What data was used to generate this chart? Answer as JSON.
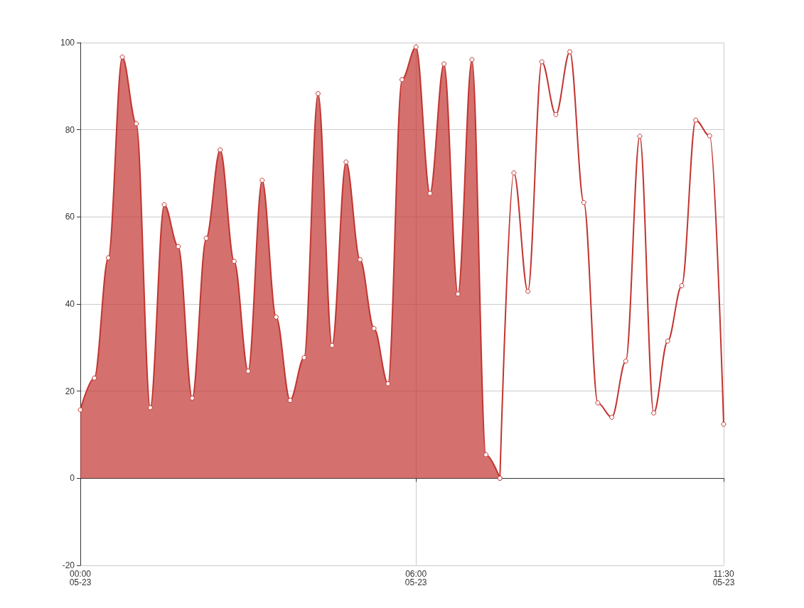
{
  "chart_data": {
    "type": "line",
    "categories": [
      "00:00\n05-23",
      null,
      null,
      null,
      null,
      null,
      null,
      null,
      null,
      null,
      null,
      null,
      null,
      null,
      null,
      null,
      null,
      null,
      null,
      null,
      null,
      null,
      null,
      null,
      "06:00\n05-23",
      null,
      null,
      null,
      null,
      null,
      null,
      null,
      null,
      null,
      null,
      null,
      null,
      null,
      null,
      null,
      null,
      null,
      null,
      null,
      null,
      null,
      "11:30\n05-23"
    ],
    "series": [
      {
        "type": "area",
        "color": "#c23531",
        "values": [
          15.7,
          23,
          50.6,
          96.7,
          81.4,
          16.2,
          62.8,
          53.2,
          18.4,
          55.1,
          75.4,
          49.8,
          24.6,
          68.4,
          37,
          17.9,
          27.7,
          88.3,
          30.5,
          72.6,
          50.2,
          34.4,
          21.7,
          91.5,
          99,
          65.4,
          95.1,
          42.3,
          96.1,
          5.4,
          0,
          null,
          null,
          null,
          null,
          null,
          null,
          null,
          null,
          null,
          null,
          null,
          null,
          null,
          null,
          null,
          null
        ]
      },
      {
        "color": "#c23531",
        "values": [
          null,
          null,
          null,
          null,
          null,
          null,
          null,
          null,
          null,
          null,
          null,
          null,
          null,
          null,
          null,
          null,
          null,
          null,
          null,
          null,
          null,
          null,
          null,
          null,
          null,
          null,
          null,
          null,
          null,
          null,
          0,
          70.1,
          42.9,
          95.6,
          83.5,
          97.9,
          63.3,
          17.3,
          14,
          26.9,
          78.5,
          15,
          31.5,
          44.2,
          82.2,
          78.6,
          12.4
        ]
      }
    ],
    "ylim": [
      -20,
      100
    ],
    "yticks": [
      -20,
      0,
      20,
      40,
      60,
      80,
      100
    ],
    "grid": true,
    "marker": "circle",
    "line_style": "solid"
  }
}
